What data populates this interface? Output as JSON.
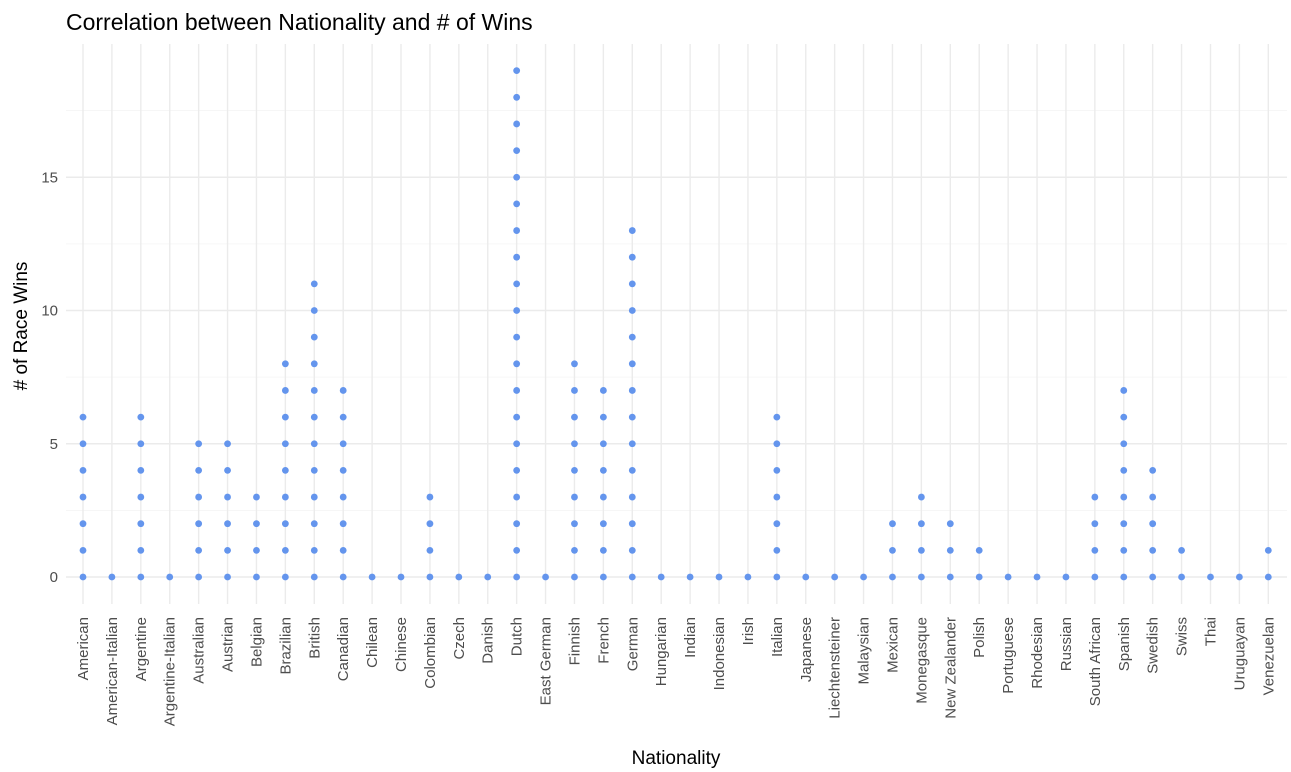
{
  "chart_data": {
    "type": "scatter",
    "title": "Correlation between Nationality and # of Wins",
    "xlabel": "Nationality",
    "ylabel": "# of Race Wins",
    "ylim": [
      -0.7,
      19.7
    ],
    "yticks": [
      0,
      5,
      10,
      15
    ],
    "grid": true,
    "point_color": "#6495ed",
    "categories": [
      "American",
      "American-Italian",
      "Argentine",
      "Argentine-Italian",
      "Australian",
      "Austrian",
      "Belgian",
      "Brazilian",
      "British",
      "Canadian",
      "Chilean",
      "Chinese",
      "Colombian",
      "Czech",
      "Danish",
      "Dutch",
      "East German",
      "Finnish",
      "French",
      "German",
      "Hungarian",
      "Indian",
      "Indonesian",
      "Irish",
      "Italian",
      "Japanese",
      "Liechtensteiner",
      "Malaysian",
      "Mexican",
      "Monegasque",
      "New Zealander",
      "Polish",
      "Portuguese",
      "Rhodesian",
      "Russian",
      "South African",
      "Spanish",
      "Swedish",
      "Swiss",
      "Thai",
      "Uruguayan",
      "Venezuelan"
    ],
    "max_wins": [
      6,
      0,
      6,
      0,
      5,
      5,
      3,
      8,
      11,
      7,
      0,
      0,
      3,
      0,
      0,
      19,
      0,
      8,
      7,
      13,
      0,
      0,
      0,
      0,
      6,
      0,
      0,
      0,
      2,
      3,
      2,
      1,
      0,
      0,
      0,
      3,
      7,
      4,
      1,
      0,
      0,
      1
    ],
    "points_note": "each category shows one point at every integer value from 0 to its max"
  }
}
